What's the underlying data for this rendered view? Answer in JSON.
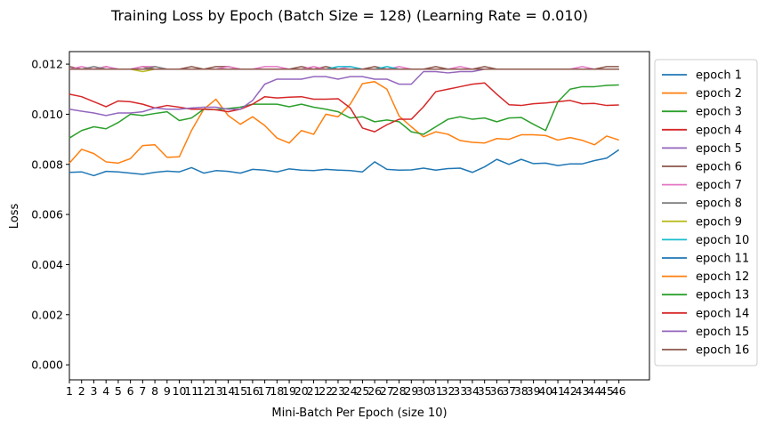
{
  "chart_data": {
    "type": "line",
    "title": "Training Loss by Epoch (Batch Size = 128) (Learning Rate = 0.010)",
    "xlabel": "Mini-Batch Per Epoch (size 10)",
    "ylabel": "Loss",
    "xlim": [
      1,
      48.5
    ],
    "ylim": [
      -0.0006,
      0.0125
    ],
    "x": [
      1,
      2,
      3,
      4,
      5,
      6,
      7,
      8,
      9,
      10,
      11,
      12,
      13,
      14,
      15,
      16,
      17,
      18,
      19,
      20,
      21,
      22,
      23,
      24,
      25,
      26,
      27,
      28,
      29,
      30,
      31,
      32,
      33,
      34,
      35,
      36,
      37,
      38,
      39,
      40,
      41,
      42,
      43,
      44,
      45,
      46
    ],
    "x_tick_labels": [
      "1",
      "2",
      "3",
      "4",
      "5",
      "6",
      "7",
      "8",
      "9",
      "10",
      "11",
      "12",
      "13",
      "14",
      "15",
      "16",
      "17",
      "18",
      "19",
      "20",
      "21",
      "22",
      "23",
      "24",
      "25",
      "26",
      "27",
      "28",
      "29",
      "30",
      "31",
      "32",
      "33",
      "34",
      "35",
      "36",
      "37",
      "38",
      "39",
      "40",
      "41",
      "42",
      "43",
      "44",
      "45",
      "46"
    ],
    "y_ticks": [
      0.0,
      0.002,
      0.004,
      0.006,
      0.008,
      0.01,
      0.012
    ],
    "y_tick_labels": [
      "0.000",
      "0.002",
      "0.004",
      "0.006",
      "0.008",
      "0.010",
      "0.012"
    ],
    "grid": false,
    "legend_position": "outside-right",
    "series": [
      {
        "name": "epoch 1",
        "color": "#1f77b4",
        "values": [
          0.00768,
          0.0077,
          0.00755,
          0.00772,
          0.0077,
          0.00765,
          0.0076,
          0.00768,
          0.00773,
          0.0077,
          0.00787,
          0.00765,
          0.00775,
          0.00772,
          0.00765,
          0.0078,
          0.00777,
          0.0077,
          0.00782,
          0.00777,
          0.00775,
          0.0078,
          0.00777,
          0.00775,
          0.0077,
          0.0081,
          0.0078,
          0.00777,
          0.00778,
          0.00785,
          0.00777,
          0.00783,
          0.00785,
          0.00768,
          0.0079,
          0.0082,
          0.008,
          0.0082,
          0.00803,
          0.00805,
          0.00795,
          0.00802,
          0.00802,
          0.00815,
          0.00825,
          0.00858
        ]
      },
      {
        "name": "epoch 2",
        "color": "#ff7f0e",
        "values": [
          0.00805,
          0.0086,
          0.00843,
          0.0081,
          0.00805,
          0.00823,
          0.00875,
          0.00878,
          0.00828,
          0.0083,
          0.00935,
          0.0102,
          0.0106,
          0.00995,
          0.0096,
          0.0099,
          0.00955,
          0.00905,
          0.00885,
          0.00935,
          0.0092,
          0.01,
          0.0099,
          0.0104,
          0.01122,
          0.0113,
          0.011,
          0.00993,
          0.0095,
          0.0091,
          0.0093,
          0.0092,
          0.00895,
          0.00888,
          0.00885,
          0.00903,
          0.009,
          0.00918,
          0.00918,
          0.00915,
          0.00897,
          0.00907,
          0.00896,
          0.00878,
          0.00913,
          0.00897
        ]
      },
      {
        "name": "epoch 3",
        "color": "#2ca02c",
        "values": [
          0.00905,
          0.00935,
          0.0095,
          0.00942,
          0.00967,
          0.01,
          0.00995,
          0.01003,
          0.0101,
          0.00975,
          0.00985,
          0.0102,
          0.01018,
          0.01023,
          0.01028,
          0.0104,
          0.0104,
          0.0104,
          0.0103,
          0.0104,
          0.01028,
          0.0102,
          0.0101,
          0.00985,
          0.0099,
          0.0097,
          0.00977,
          0.0097,
          0.0093,
          0.0092,
          0.0095,
          0.0098,
          0.0099,
          0.0098,
          0.00985,
          0.0097,
          0.00985,
          0.00987,
          0.0096,
          0.00935,
          0.0105,
          0.011,
          0.0111,
          0.0111,
          0.01115,
          0.01117
        ]
      },
      {
        "name": "epoch 4",
        "color": "#d62728",
        "values": [
          0.0108,
          0.0107,
          0.0105,
          0.0103,
          0.01053,
          0.0105,
          0.0104,
          0.01025,
          0.01035,
          0.01028,
          0.0102,
          0.0102,
          0.01018,
          0.0101,
          0.0102,
          0.0104,
          0.0107,
          0.01065,
          0.01068,
          0.0107,
          0.0106,
          0.0106,
          0.01062,
          0.01025,
          0.00945,
          0.0093,
          0.00958,
          0.0098,
          0.0098,
          0.0103,
          0.0109,
          0.011,
          0.0111,
          0.0112,
          0.01125,
          0.0108,
          0.01038,
          0.01035,
          0.01042,
          0.01045,
          0.0105,
          0.01055,
          0.01042,
          0.01043,
          0.01035,
          0.01037
        ]
      },
      {
        "name": "epoch 5",
        "color": "#9467bd",
        "values": [
          0.0102,
          0.01012,
          0.01005,
          0.00995,
          0.01005,
          0.01005,
          0.0101,
          0.01025,
          0.0102,
          0.0102,
          0.01025,
          0.01028,
          0.01028,
          0.0102,
          0.0102,
          0.01055,
          0.0112,
          0.0114,
          0.0114,
          0.0114,
          0.0115,
          0.0115,
          0.0114,
          0.0115,
          0.0115,
          0.0114,
          0.0114,
          0.0112,
          0.0112,
          0.0117,
          0.0117,
          0.01165,
          0.0117,
          0.0117,
          0.0118,
          0.0118,
          0.0118,
          0.0118,
          0.0118,
          0.0118,
          0.0118,
          0.0118,
          0.0118,
          0.0118,
          0.0118,
          0.0118
        ]
      },
      {
        "name": "epoch 6",
        "color": "#8c564b",
        "values": [
          0.0119,
          0.0118,
          0.0118,
          0.0119,
          0.0118,
          0.0118,
          0.0119,
          0.0118,
          0.0118,
          0.0118,
          0.0119,
          0.0118,
          0.0119,
          0.0119,
          0.0118,
          0.0118,
          0.0118,
          0.0118,
          0.0118,
          0.0119,
          0.0118,
          0.0119,
          0.0118,
          0.0118,
          0.0118,
          0.0119,
          0.0118,
          0.0118,
          0.0118,
          0.0118,
          0.0119,
          0.0118,
          0.0118,
          0.0118,
          0.0119,
          0.0118,
          0.0118,
          0.0118,
          0.0118,
          0.0118,
          0.0118,
          0.0118,
          0.0118,
          0.0118,
          0.0119,
          0.0119
        ]
      },
      {
        "name": "epoch 7",
        "color": "#e377c2",
        "values": [
          0.0118,
          0.0119,
          0.0118,
          0.0119,
          0.0118,
          0.0118,
          0.0119,
          0.0119,
          0.0118,
          0.0118,
          0.0118,
          0.0118,
          0.0118,
          0.0119,
          0.0118,
          0.0118,
          0.0119,
          0.0119,
          0.0118,
          0.0118,
          0.0119,
          0.0118,
          0.0118,
          0.0119,
          0.0118,
          0.0118,
          0.0118,
          0.0119,
          0.0118,
          0.0118,
          0.0118,
          0.0118,
          0.0119,
          0.0118,
          0.0118,
          0.0118,
          0.0118,
          0.0118,
          0.0118,
          0.0118,
          0.0118,
          0.0118,
          0.0119,
          0.0118,
          0.0118,
          0.0118
        ]
      },
      {
        "name": "epoch 8",
        "color": "#7f7f7f",
        "values": [
          0.0118,
          0.0118,
          0.0119,
          0.0118,
          0.0118,
          0.0118,
          0.0118,
          0.0119,
          0.0118,
          0.0118,
          0.0118,
          0.0118,
          0.0118,
          0.0118,
          0.0118,
          0.0118,
          0.0118,
          0.0118,
          0.0118,
          0.0118,
          0.0118,
          0.0118,
          0.0118,
          0.0118,
          0.0118,
          0.0118,
          0.0118,
          0.0118,
          0.0118,
          0.0118,
          0.0118,
          0.0118,
          0.0118,
          0.0118,
          0.0118,
          0.0118,
          0.0118,
          0.0118,
          0.0118,
          0.0118,
          0.0118,
          0.0118,
          0.0118,
          0.0118,
          0.0118,
          0.0118
        ]
      },
      {
        "name": "epoch 9",
        "color": "#bcbd22",
        "values": [
          0.0118,
          0.0118,
          0.0118,
          0.0118,
          0.0118,
          0.0118,
          0.0117,
          0.0118,
          0.0118,
          0.0118,
          0.0118,
          0.0118,
          0.0118,
          0.0118,
          0.0118,
          0.0118,
          0.0118,
          0.0118,
          0.0118,
          0.0118,
          0.0118,
          0.0118,
          0.0118,
          0.0118,
          0.0118,
          0.0118,
          0.0118,
          0.0118,
          0.0118,
          0.0118,
          0.0118,
          0.0118,
          0.0118,
          0.0118,
          0.0118,
          0.0118,
          0.0118,
          0.0118,
          0.0118,
          0.0118,
          0.0118,
          0.0118,
          0.0118,
          0.0118,
          0.0118,
          0.0118
        ]
      },
      {
        "name": "epoch 10",
        "color": "#17becf",
        "values": [
          0.0118,
          0.0118,
          0.0118,
          0.0118,
          0.0118,
          0.0118,
          0.0118,
          0.0118,
          0.0118,
          0.0118,
          0.0118,
          0.0118,
          0.0118,
          0.0118,
          0.0118,
          0.0118,
          0.0118,
          0.0118,
          0.0118,
          0.0118,
          0.0118,
          0.0118,
          0.0119,
          0.0119,
          0.0118,
          0.0118,
          0.0119,
          0.0118,
          0.0118,
          0.0118,
          0.0118,
          0.0118,
          0.0118,
          0.0118,
          0.0118,
          0.0118,
          0.0118,
          0.0118,
          0.0118,
          0.0118,
          0.0118,
          0.0118,
          0.0118,
          0.0118,
          0.0118,
          0.0118
        ]
      },
      {
        "name": "epoch 11",
        "color": "#1f77b4",
        "values": [
          0.0118,
          0.0118,
          0.0118,
          0.0118,
          0.0118,
          0.0118,
          0.0118,
          0.0118,
          0.0118,
          0.0118,
          0.0118,
          0.0118,
          0.0118,
          0.0118,
          0.0118,
          0.0118,
          0.0118,
          0.0118,
          0.0118,
          0.0118,
          0.0118,
          0.0118,
          0.0118,
          0.0118,
          0.0118,
          0.0118,
          0.0118,
          0.0118,
          0.0118,
          0.0118,
          0.0118,
          0.0118,
          0.0118,
          0.0118,
          0.0118,
          0.0118,
          0.0118,
          0.0118,
          0.0118,
          0.0118,
          0.0118,
          0.0118,
          0.0118,
          0.0118,
          0.0118,
          0.0118
        ]
      },
      {
        "name": "epoch 12",
        "color": "#ff7f0e",
        "values": [
          0.0118,
          0.0118,
          0.0118,
          0.0118,
          0.0118,
          0.0118,
          0.0118,
          0.0118,
          0.0118,
          0.0118,
          0.0118,
          0.0118,
          0.0118,
          0.0118,
          0.0118,
          0.0118,
          0.0118,
          0.0118,
          0.0118,
          0.0118,
          0.0118,
          0.0118,
          0.0118,
          0.0118,
          0.0118,
          0.0118,
          0.0118,
          0.0118,
          0.0118,
          0.0118,
          0.0118,
          0.0118,
          0.0118,
          0.0118,
          0.0118,
          0.0118,
          0.0118,
          0.0118,
          0.0118,
          0.0118,
          0.0118,
          0.0118,
          0.0118,
          0.0118,
          0.0118,
          0.0118
        ]
      },
      {
        "name": "epoch 13",
        "color": "#2ca02c",
        "values": [
          0.0118,
          0.0118,
          0.0118,
          0.0118,
          0.0118,
          0.0118,
          0.0118,
          0.0118,
          0.0118,
          0.0118,
          0.0118,
          0.0118,
          0.0118,
          0.0118,
          0.0118,
          0.0118,
          0.0118,
          0.0118,
          0.0118,
          0.0118,
          0.0118,
          0.0118,
          0.0118,
          0.0118,
          0.0118,
          0.0118,
          0.0118,
          0.0118,
          0.0118,
          0.0118,
          0.0118,
          0.0118,
          0.0118,
          0.0118,
          0.0118,
          0.0118,
          0.0118,
          0.0118,
          0.0118,
          0.0118,
          0.0118,
          0.0118,
          0.0118,
          0.0118,
          0.0118,
          0.0118
        ]
      },
      {
        "name": "epoch 14",
        "color": "#d62728",
        "values": [
          0.0118,
          0.0118,
          0.0118,
          0.0118,
          0.0118,
          0.0118,
          0.0118,
          0.0118,
          0.0118,
          0.0118,
          0.0118,
          0.0118,
          0.0118,
          0.0118,
          0.0118,
          0.0118,
          0.0118,
          0.0118,
          0.0118,
          0.0118,
          0.0118,
          0.0118,
          0.0118,
          0.0118,
          0.0118,
          0.0118,
          0.0118,
          0.0118,
          0.0118,
          0.0118,
          0.0118,
          0.0118,
          0.0118,
          0.0118,
          0.0118,
          0.0118,
          0.0118,
          0.0118,
          0.0118,
          0.0118,
          0.0118,
          0.0118,
          0.0118,
          0.0118,
          0.0118,
          0.0118
        ]
      },
      {
        "name": "epoch 15",
        "color": "#9467bd",
        "values": [
          0.0118,
          0.0118,
          0.0118,
          0.0118,
          0.0118,
          0.0118,
          0.0118,
          0.0118,
          0.0118,
          0.0118,
          0.0118,
          0.0118,
          0.0118,
          0.0118,
          0.0118,
          0.0118,
          0.0118,
          0.0118,
          0.0118,
          0.0118,
          0.0118,
          0.0118,
          0.0118,
          0.0118,
          0.0118,
          0.0118,
          0.0118,
          0.0118,
          0.0118,
          0.0118,
          0.0118,
          0.0118,
          0.0118,
          0.0118,
          0.0118,
          0.0118,
          0.0118,
          0.0118,
          0.0118,
          0.0118,
          0.0118,
          0.0118,
          0.0118,
          0.0118,
          0.0118,
          0.0118
        ]
      },
      {
        "name": "epoch 16",
        "color": "#8c564b",
        "values": [
          0.0118,
          0.0118,
          0.0118,
          0.0118,
          0.0118,
          0.0118,
          0.0118,
          0.0118,
          0.0118,
          0.0118,
          0.0118,
          0.0118,
          0.0118,
          0.0118,
          0.0118,
          0.0118,
          0.0118,
          0.0118,
          0.0118,
          0.0118,
          0.0118,
          0.0118,
          0.0118,
          0.0118,
          0.0118,
          0.0118,
          0.0118,
          0.0118,
          0.0118,
          0.0118,
          0.0118,
          0.0118,
          0.0118,
          0.0118,
          0.0118,
          0.0118,
          0.0118,
          0.0118,
          0.0118,
          0.0118,
          0.0118,
          0.0118,
          0.0118,
          0.0118,
          0.0118,
          0.0118
        ]
      }
    ]
  }
}
